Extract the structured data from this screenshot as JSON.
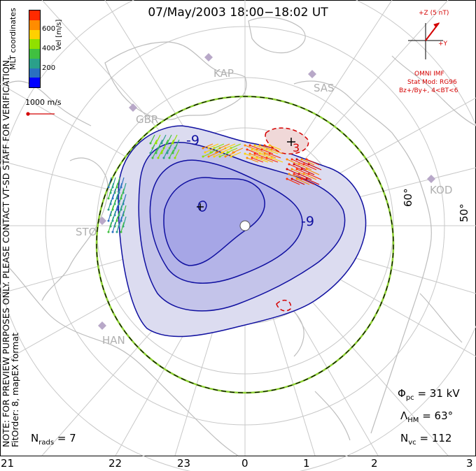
{
  "title": "07/May/2003 18:00−18:02 UT",
  "side_note_line1": "NOTE: FOR PREVIEW PURPOSES ONLY. PLEASE CONTACT VT-SD STAFF FOR VERIFICATION.",
  "side_note_line2": "FitOrder: 8, mapEX format",
  "coord_label": "MLT coordinates",
  "colorbar": {
    "unit_label": "Vel [m/s]",
    "ticks": [
      "600",
      "400",
      "200"
    ],
    "colors": [
      "#ff2a00",
      "#ff8c00",
      "#ffd000",
      "#90e000",
      "#40c040",
      "#2aa08a",
      "#2a70c0",
      "#0000ff"
    ]
  },
  "scale_label": "1000 m/s",
  "imf": {
    "z_label": "+Z (5 nT)",
    "y_label": "+Y",
    "line1": "OMNI IMF",
    "line2": "Stat Mod: RG96",
    "line3": "Bz+/By+, 4<BT<6"
  },
  "stations": [
    "KAP",
    "SAS",
    "GBR",
    "KOD",
    "STO",
    "HAN"
  ],
  "lat_labels": [
    "60°",
    "50°"
  ],
  "contour_labels": [
    "-9",
    "-9",
    "3"
  ],
  "stats": {
    "phi_label": "Φ",
    "phi_sub": "pc",
    "phi_value": "= 31 kV",
    "lambda_label": "Λ",
    "lambda_sub": "HM",
    "lambda_value": "= 63°",
    "nvc_label": "N",
    "nvc_sub": "vc",
    "nvc_value": "= 112",
    "nrads_label": "N",
    "nrads_sub": "rads",
    "nrads_value": "= 7"
  },
  "hours": [
    "21",
    "22",
    "23",
    "0",
    "1",
    "2",
    "3"
  ],
  "colors": {
    "contour_negative": "#1010a0",
    "contour_positive": "#d40000",
    "fill_light": "#dcdcf0",
    "fill_mid": "#c4c4ea",
    "fill_dark": "#a6a6e6",
    "coastline": "#bdbdbd",
    "grid": "#c8c8c8",
    "boundary_green": "#8cd030"
  }
}
